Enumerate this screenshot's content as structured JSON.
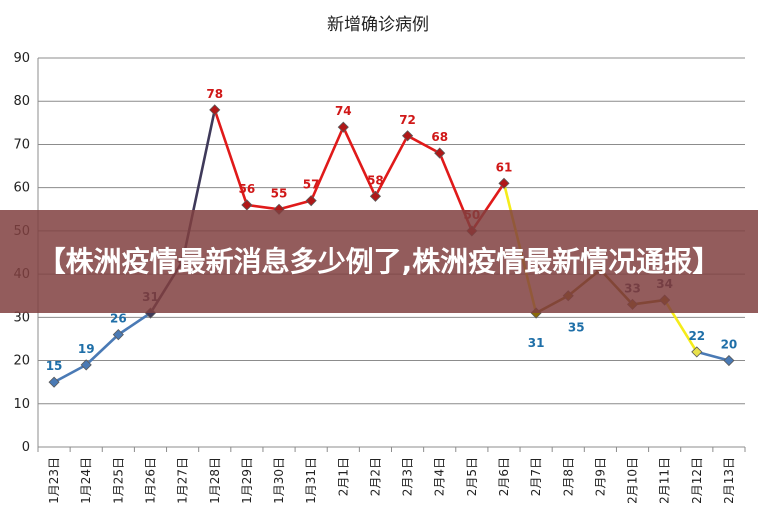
{
  "chart_data": {
    "type": "line",
    "title": "新增确诊病例",
    "categories": [
      "1月23日",
      "1月24日",
      "1月25日",
      "1月26日",
      "1月27日",
      "1月28日",
      "1月29日",
      "1月30日",
      "1月31日",
      "2月1日",
      "2月2日",
      "2月3日",
      "2月4日",
      "2月5日",
      "2月6日",
      "2月7日",
      "2月8日",
      "2月9日",
      "2月10日",
      "2月11日",
      "2月12日",
      "2月13日"
    ],
    "values": [
      15,
      19,
      26,
      31,
      43,
      78,
      56,
      55,
      57,
      74,
      58,
      72,
      68,
      50,
      61,
      31,
      35,
      41,
      33,
      34,
      22,
      20
    ],
    "data_labels": {
      "0": "15",
      "1": "19",
      "2": "26",
      "3": "31",
      "5": "78",
      "6": "56",
      "7": "55",
      "8": "57",
      "9": "74",
      "10": "58",
      "11": "72",
      "12": "68",
      "13": "50",
      "14": "61",
      "15": "31",
      "16": "35",
      "18": "33",
      "19": "34",
      "20": "22",
      "21": "20"
    },
    "ylim": [
      0,
      90
    ],
    "yticks": [
      0,
      10,
      20,
      30,
      40,
      50,
      60,
      70,
      80,
      90
    ],
    "grid": true,
    "legend": "none",
    "segments": [
      {
        "from": 0,
        "to": 3,
        "color": "#4a7ab5",
        "marker_fill": "#4a7ab5",
        "label_color": "#1f6fa8"
      },
      {
        "from": 3,
        "to": 5,
        "color": "#3f3a5a",
        "marker_fill": "#3f3a5a",
        "label_color": "#3a3a5a"
      },
      {
        "from": 5,
        "to": 14,
        "color": "#e01a1a",
        "marker_fill": "#b01818",
        "label_color": "#d01818"
      },
      {
        "from": 14,
        "to": 15,
        "color": "#f5ec1a",
        "marker_fill": "#e8e04a",
        "label_color": "#1f6fa8"
      },
      {
        "from": 15,
        "to": 19,
        "color": "#8a6a08",
        "marker_fill": "#8a6a08",
        "label_color": "#1f6fa8"
      },
      {
        "from": 19,
        "to": 20,
        "color": "#f5ec1a",
        "marker_fill": "#e8e04a",
        "label_color": "#1f6fa8"
      },
      {
        "from": 20,
        "to": 21,
        "color": "#4a7ab5",
        "marker_fill": "#4a7ab5",
        "label_color": "#1f6fa8"
      }
    ]
  },
  "banner": {
    "text": "【株洲疫情最新消息多少例了,株洲疫情最新情况通报】"
  }
}
